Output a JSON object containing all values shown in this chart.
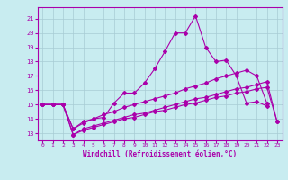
{
  "xlabel": "Windchill (Refroidissement éolien,°C)",
  "background_color": "#c8ecf0",
  "grid_color": "#a8ccd4",
  "line_color": "#aa00aa",
  "x_ticks": [
    0,
    1,
    2,
    3,
    4,
    5,
    6,
    7,
    8,
    9,
    10,
    11,
    12,
    13,
    14,
    15,
    16,
    17,
    18,
    19,
    20,
    21,
    22,
    23
  ],
  "y_ticks": [
    13,
    14,
    15,
    16,
    17,
    18,
    19,
    20,
    21
  ],
  "xlim": [
    -0.5,
    23.5
  ],
  "ylim": [
    12.5,
    21.8
  ],
  "line1_x": [
    0,
    1,
    2,
    3,
    4,
    5,
    6,
    7,
    8,
    9,
    10,
    11,
    12,
    13,
    14,
    15,
    16,
    17,
    18,
    19,
    20,
    21,
    22
  ],
  "line1_y": [
    15.0,
    15.0,
    15.0,
    13.3,
    13.8,
    14.0,
    14.1,
    15.1,
    15.8,
    15.8,
    16.5,
    17.5,
    18.7,
    20.0,
    20.0,
    21.2,
    19.0,
    18.0,
    18.1,
    17.0,
    15.1,
    15.2,
    14.9
  ],
  "line2_x": [
    0,
    1,
    2,
    3,
    4,
    5,
    6,
    7,
    8,
    9,
    10,
    11,
    12,
    13,
    14,
    15,
    16,
    17,
    18,
    19,
    20,
    21,
    22
  ],
  "line2_y": [
    15.0,
    15.0,
    15.0,
    13.3,
    13.7,
    14.0,
    14.3,
    14.5,
    14.8,
    15.0,
    15.2,
    15.4,
    15.6,
    15.8,
    16.1,
    16.3,
    16.5,
    16.8,
    17.0,
    17.2,
    17.4,
    17.0,
    15.1
  ],
  "line3_x": [
    0,
    1,
    2,
    3,
    4,
    5,
    6,
    7,
    8,
    9,
    10,
    11,
    12,
    13,
    14,
    15,
    16,
    17,
    18,
    19,
    20,
    21,
    22,
    23
  ],
  "line3_y": [
    15.0,
    15.0,
    15.0,
    12.9,
    13.3,
    13.5,
    13.7,
    13.9,
    14.1,
    14.3,
    14.4,
    14.6,
    14.8,
    15.0,
    15.2,
    15.4,
    15.5,
    15.7,
    15.9,
    16.1,
    16.2,
    16.4,
    16.6,
    13.8
  ],
  "line4_x": [
    0,
    1,
    2,
    3,
    4,
    5,
    6,
    7,
    8,
    9,
    10,
    11,
    12,
    13,
    14,
    15,
    16,
    17,
    18,
    19,
    20,
    21,
    22,
    23
  ],
  "line4_y": [
    15.0,
    15.0,
    15.0,
    12.9,
    13.2,
    13.4,
    13.6,
    13.8,
    14.0,
    14.1,
    14.3,
    14.5,
    14.6,
    14.8,
    15.0,
    15.1,
    15.3,
    15.5,
    15.6,
    15.8,
    15.9,
    16.1,
    16.2,
    13.8
  ]
}
